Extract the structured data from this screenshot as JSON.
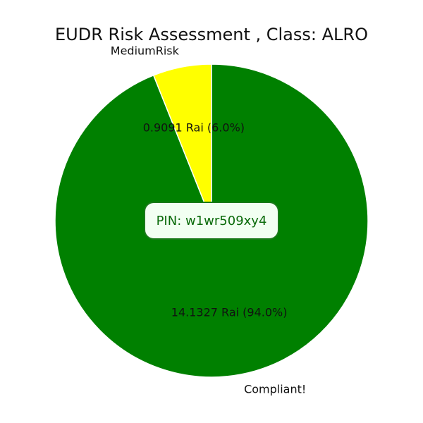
{
  "chart_data": {
    "type": "pie",
    "title": "EUDR Risk Assessment , Class: ALRO",
    "start_angle": "12 o'clock",
    "direction": "counterclockwise",
    "slices": [
      {
        "name": "MediumRisk",
        "value": 0.9091,
        "percent": 6.0,
        "value_label": "0.9091 Rai (6.0%)",
        "color": "#ffff00"
      },
      {
        "name": "Compliant!",
        "value": 14.1327,
        "percent": 94.0,
        "value_label": "14.1327 Rai (94.0%)",
        "color": "#008000"
      }
    ],
    "edge_color": "#ffffff"
  },
  "pin_badge": {
    "label": "PIN: w1wr509xy4"
  }
}
